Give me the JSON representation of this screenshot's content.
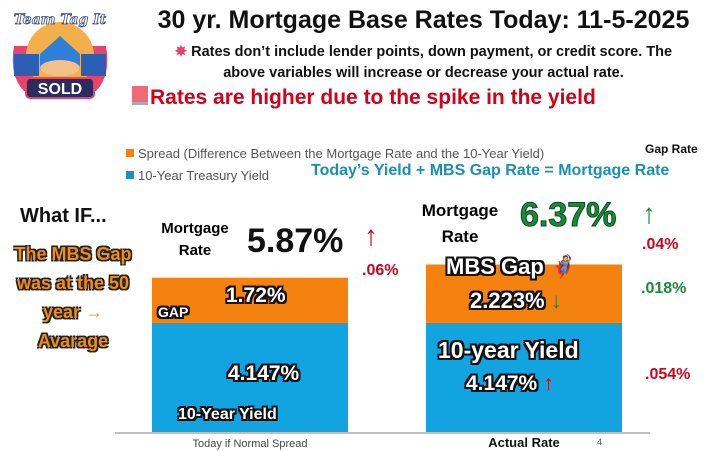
{
  "header": {
    "logo_text": "Team Tag It SOLD",
    "title": "30 yr. Mortgage Base Rates Today: 11-5-2025",
    "note_icon": "collision-icon",
    "note_line1": "Rates don’t include lender points, down payment, or credit score. The",
    "note_line2": "above variables will increase or decrease your actual rate.",
    "alert_icon": "siren-icon",
    "alert": "Rates are higher due to the spike in the yield"
  },
  "legend": {
    "spread": "Spread (Difference Between the Mortgage Rate and the 10-Year Yield)",
    "yield": "10-Year Treasury Yield"
  },
  "formula": "Today’s  Yield +  MBS Gap Rate = Mortgage Rate",
  "gap_rate_label": "Gap Rate",
  "what_if": {
    "heading": "What IF...",
    "lines": [
      "The MBS Gap",
      "was at the 50",
      "year",
      "Avarage"
    ]
  },
  "left_bar": {
    "mortgage_label_1": "Mortgage",
    "mortgage_label_2": "Rate",
    "mortgage_rate": "5.87%",
    "change": ".06%",
    "gap_value": "1.72%",
    "gap_label": "GAP",
    "yield_value": "4.147%",
    "yield_label": "10-Year Yield"
  },
  "right_bar": {
    "mortgage_label_1": "Mortgage",
    "mortgage_label_2": "Rate",
    "mortgage_rate": "6.37%",
    "mortgage_change": ".04%",
    "gap_label": "MBS Gap",
    "gap_value": "2.223%",
    "gap_change": ".018%",
    "yield_label": "10-year Yield",
    "yield_value": "4.147%",
    "yield_change": ".054%"
  },
  "stray_mark": "4",
  "colors": {
    "spread": "#f5820f",
    "yield": "#12a4e0",
    "up": "#d0021b",
    "down": "#1a8a3a",
    "formula": "#1a8fb5"
  },
  "chart_data": {
    "type": "bar",
    "stacked": true,
    "categories": [
      "Today if Normal Spread",
      "Actual Rate"
    ],
    "series": [
      {
        "name": "10-Year Treasury Yield",
        "values": [
          4.147,
          4.147
        ]
      },
      {
        "name": "Spread (Difference Between the Mortgage Rate and the 10-Year Yield)",
        "values": [
          1.72,
          2.223
        ]
      }
    ],
    "legend_position": "top-left",
    "grid": false
  }
}
